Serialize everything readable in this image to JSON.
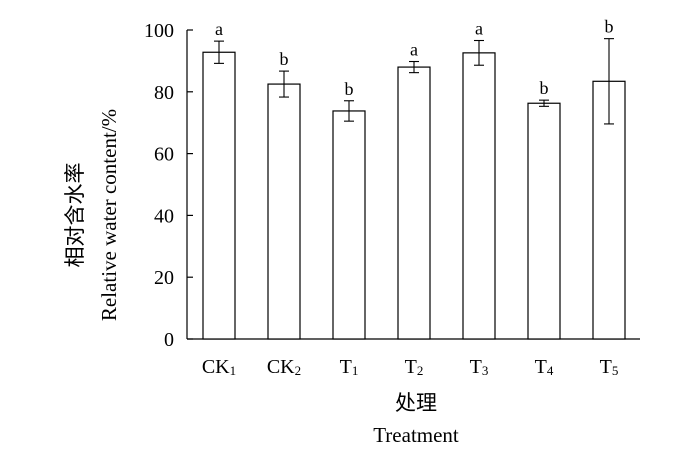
{
  "chart_data": {
    "type": "bar",
    "categories": [
      {
        "base": "CK",
        "sub": "1"
      },
      {
        "base": "CK",
        "sub": "2"
      },
      {
        "base": "T",
        "sub": "1"
      },
      {
        "base": "T",
        "sub": "2"
      },
      {
        "base": "T",
        "sub": "3"
      },
      {
        "base": "T",
        "sub": "4"
      },
      {
        "base": "T",
        "sub": "5"
      }
    ],
    "values": [
      92.8,
      82.5,
      73.8,
      88.0,
      92.6,
      76.3,
      83.4
    ],
    "errors": [
      3.6,
      4.2,
      3.3,
      1.8,
      4.0,
      1.0,
      13.8
    ],
    "significance": [
      "a",
      "b",
      "b",
      "a",
      "a",
      "b",
      "b"
    ],
    "ylim": [
      0,
      100
    ],
    "yticks": [
      0,
      20,
      40,
      60,
      80,
      100
    ],
    "ylabel_cn": "相对含水率",
    "ylabel_en": "Relative water content/%",
    "xlabel_cn": "处理",
    "xlabel_en": "Treatment",
    "grid": false,
    "colors": {
      "bar_fill": "#ffffff",
      "stroke": "#000000"
    }
  }
}
